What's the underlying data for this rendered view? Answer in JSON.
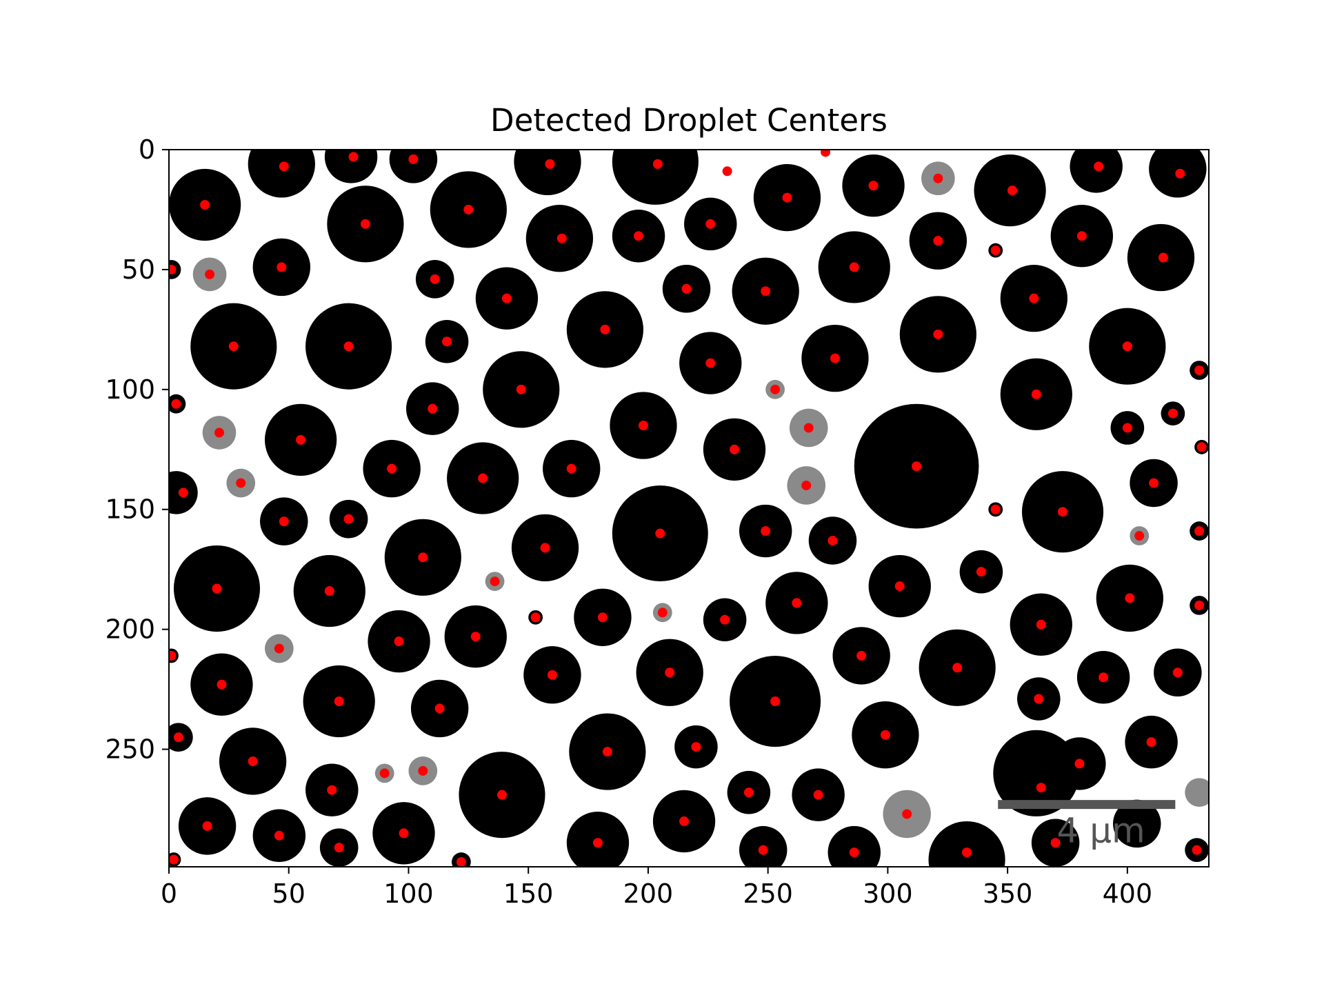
{
  "chart_data": {
    "type": "scatter",
    "title": "Detected Droplet Centers",
    "xlabel": "",
    "ylabel": "",
    "xlim": [
      0,
      434
    ],
    "ylim": [
      299,
      0
    ],
    "x_ticks": [
      0,
      50,
      100,
      150,
      200,
      250,
      300,
      350,
      400
    ],
    "y_ticks": [
      0,
      50,
      100,
      150,
      200,
      250
    ],
    "grid": false,
    "background": "grayscale micrograph of dark droplets on white",
    "scale_bar": {
      "label": "4 µm",
      "x_start": 346,
      "x_end": 420,
      "y": 273,
      "color": "#555555"
    },
    "colors": {
      "marker": "#ff0000",
      "droplet": "#000000",
      "faint_droplet": "#8a8a8a",
      "axes": "#000000"
    },
    "series": [
      {
        "name": "Detected centers",
        "color": "#ff0000",
        "points": [
          [
            48,
            7
          ],
          [
            77,
            3
          ],
          [
            102,
            4
          ],
          [
            159,
            6
          ],
          [
            204,
            6
          ],
          [
            233,
            9
          ],
          [
            274,
            1
          ],
          [
            15,
            23
          ],
          [
            125,
            25
          ],
          [
            258,
            20
          ],
          [
            294,
            15
          ],
          [
            321,
            12
          ],
          [
            352,
            17
          ],
          [
            388,
            7
          ],
          [
            422,
            10
          ],
          [
            82,
            31
          ],
          [
            164,
            37
          ],
          [
            196,
            36
          ],
          [
            226,
            31
          ],
          [
            321,
            38
          ],
          [
            345,
            42
          ],
          [
            381,
            36
          ],
          [
            415,
            45
          ],
          [
            1,
            50
          ],
          [
            17,
            52
          ],
          [
            47,
            49
          ],
          [
            111,
            54
          ],
          [
            141,
            62
          ],
          [
            216,
            58
          ],
          [
            249,
            59
          ],
          [
            286,
            49
          ],
          [
            361,
            62
          ],
          [
            27,
            82
          ],
          [
            75,
            82
          ],
          [
            116,
            80
          ],
          [
            182,
            75
          ],
          [
            226,
            89
          ],
          [
            278,
            87
          ],
          [
            321,
            77
          ],
          [
            400,
            82
          ],
          [
            430,
            92
          ],
          [
            3,
            106
          ],
          [
            147,
            100
          ],
          [
            110,
            108
          ],
          [
            253,
            100
          ],
          [
            362,
            102
          ],
          [
            21,
            118
          ],
          [
            55,
            121
          ],
          [
            198,
            115
          ],
          [
            267,
            116
          ],
          [
            236,
            125
          ],
          [
            400,
            116
          ],
          [
            419,
            110
          ],
          [
            431,
            124
          ],
          [
            6,
            143
          ],
          [
            30,
            139
          ],
          [
            93,
            133
          ],
          [
            131,
            137
          ],
          [
            168,
            133
          ],
          [
            312,
            132
          ],
          [
            266,
            140
          ],
          [
            411,
            139
          ],
          [
            48,
            155
          ],
          [
            75,
            154
          ],
          [
            157,
            166
          ],
          [
            205,
            160
          ],
          [
            249,
            159
          ],
          [
            277,
            163
          ],
          [
            345,
            150
          ],
          [
            373,
            151
          ],
          [
            405,
            161
          ],
          [
            430,
            159
          ],
          [
            106,
            170
          ],
          [
            136,
            180
          ],
          [
            20,
            183
          ],
          [
            67,
            184
          ],
          [
            262,
            189
          ],
          [
            305,
            182
          ],
          [
            339,
            176
          ],
          [
            153,
            195
          ],
          [
            181,
            195
          ],
          [
            206,
            193
          ],
          [
            232,
            196
          ],
          [
            364,
            198
          ],
          [
            401,
            187
          ],
          [
            430,
            190
          ],
          [
            1,
            211
          ],
          [
            46,
            208
          ],
          [
            96,
            205
          ],
          [
            128,
            203
          ],
          [
            289,
            211
          ],
          [
            22,
            223
          ],
          [
            160,
            219
          ],
          [
            209,
            218
          ],
          [
            329,
            216
          ],
          [
            390,
            220
          ],
          [
            421,
            218
          ],
          [
            71,
            230
          ],
          [
            113,
            233
          ],
          [
            253,
            230
          ],
          [
            363,
            229
          ],
          [
            4,
            245
          ],
          [
            299,
            244
          ],
          [
            35,
            255
          ],
          [
            90,
            260
          ],
          [
            106,
            259
          ],
          [
            183,
            251
          ],
          [
            220,
            249
          ],
          [
            380,
            256
          ],
          [
            410,
            247
          ],
          [
            68,
            267
          ],
          [
            139,
            269
          ],
          [
            242,
            268
          ],
          [
            271,
            269
          ],
          [
            364,
            266
          ],
          [
            16,
            282
          ],
          [
            46,
            286
          ],
          [
            98,
            285
          ],
          [
            215,
            280
          ],
          [
            308,
            277
          ],
          [
            71,
            291
          ],
          [
            179,
            289
          ],
          [
            248,
            292
          ],
          [
            286,
            293
          ],
          [
            333,
            293
          ],
          [
            370,
            289
          ],
          [
            2,
            296
          ],
          [
            122,
            297
          ],
          [
            429,
            292
          ]
        ]
      }
    ],
    "droplets": [
      [
        47,
        6,
        14,
        "d"
      ],
      [
        76,
        3,
        11,
        "d"
      ],
      [
        102,
        4,
        10,
        "d"
      ],
      [
        158,
        5,
        14,
        "d"
      ],
      [
        203,
        5,
        18,
        "d"
      ],
      [
        15,
        23,
        15,
        "d"
      ],
      [
        125,
        25,
        16,
        "d"
      ],
      [
        82,
        31,
        16,
        "d"
      ],
      [
        163,
        37,
        14,
        "d"
      ],
      [
        196,
        36,
        11,
        "d"
      ],
      [
        226,
        31,
        11,
        "d"
      ],
      [
        258,
        20,
        14,
        "d"
      ],
      [
        294,
        15,
        13,
        "d"
      ],
      [
        321,
        12,
        7,
        "f"
      ],
      [
        351,
        17,
        15,
        "d"
      ],
      [
        387,
        7,
        11,
        "d"
      ],
      [
        421,
        8,
        12,
        "d"
      ],
      [
        321,
        38,
        12,
        "d"
      ],
      [
        345,
        42,
        3,
        "d"
      ],
      [
        381,
        36,
        13,
        "d"
      ],
      [
        414,
        45,
        14,
        "d"
      ],
      [
        1,
        50,
        4,
        "d"
      ],
      [
        17,
        52,
        7,
        "f"
      ],
      [
        47,
        49,
        12,
        "d"
      ],
      [
        111,
        54,
        8,
        "d"
      ],
      [
        141,
        62,
        13,
        "d"
      ],
      [
        216,
        58,
        10,
        "d"
      ],
      [
        249,
        59,
        14,
        "d"
      ],
      [
        286,
        49,
        15,
        "d"
      ],
      [
        361,
        62,
        14,
        "d"
      ],
      [
        27,
        82,
        18,
        "d"
      ],
      [
        75,
        82,
        18,
        "d"
      ],
      [
        116,
        80,
        9,
        "d"
      ],
      [
        182,
        75,
        16,
        "d"
      ],
      [
        226,
        89,
        13,
        "d"
      ],
      [
        278,
        87,
        14,
        "d"
      ],
      [
        321,
        77,
        16,
        "d"
      ],
      [
        400,
        82,
        16,
        "d"
      ],
      [
        430,
        92,
        4,
        "d"
      ],
      [
        3,
        106,
        4,
        "d"
      ],
      [
        147,
        100,
        16,
        "d"
      ],
      [
        110,
        108,
        11,
        "d"
      ],
      [
        253,
        100,
        4,
        "f"
      ],
      [
        362,
        102,
        15,
        "d"
      ],
      [
        21,
        118,
        7,
        "f"
      ],
      [
        55,
        121,
        15,
        "d"
      ],
      [
        198,
        115,
        14,
        "d"
      ],
      [
        267,
        116,
        8,
        "f"
      ],
      [
        236,
        125,
        13,
        "d"
      ],
      [
        400,
        116,
        7,
        "d"
      ],
      [
        419,
        110,
        5,
        "d"
      ],
      [
        431,
        124,
        3,
        "d"
      ],
      [
        3,
        143,
        9,
        "d"
      ],
      [
        30,
        139,
        6,
        "f"
      ],
      [
        93,
        133,
        12,
        "d"
      ],
      [
        131,
        137,
        15,
        "d"
      ],
      [
        168,
        133,
        12,
        "d"
      ],
      [
        312,
        132,
        26,
        "d"
      ],
      [
        266,
        140,
        8,
        "f"
      ],
      [
        411,
        139,
        10,
        "d"
      ],
      [
        48,
        155,
        10,
        "d"
      ],
      [
        75,
        154,
        8,
        "d"
      ],
      [
        157,
        166,
        14,
        "d"
      ],
      [
        205,
        160,
        20,
        "d"
      ],
      [
        249,
        159,
        11,
        "d"
      ],
      [
        277,
        163,
        10,
        "d"
      ],
      [
        345,
        150,
        3,
        "d"
      ],
      [
        373,
        151,
        17,
        "d"
      ],
      [
        405,
        161,
        4,
        "f"
      ],
      [
        430,
        159,
        4,
        "d"
      ],
      [
        106,
        170,
        16,
        "d"
      ],
      [
        136,
        180,
        4,
        "f"
      ],
      [
        20,
        183,
        18,
        "d"
      ],
      [
        67,
        184,
        15,
        "d"
      ],
      [
        262,
        189,
        13,
        "d"
      ],
      [
        305,
        182,
        13,
        "d"
      ],
      [
        339,
        176,
        9,
        "d"
      ],
      [
        153,
        195,
        3,
        "d"
      ],
      [
        181,
        195,
        12,
        "d"
      ],
      [
        206,
        193,
        4,
        "f"
      ],
      [
        232,
        196,
        9,
        "d"
      ],
      [
        364,
        198,
        13,
        "d"
      ],
      [
        401,
        187,
        14,
        "d"
      ],
      [
        430,
        190,
        4,
        "d"
      ],
      [
        1,
        211,
        3,
        "d"
      ],
      [
        46,
        208,
        6,
        "f"
      ],
      [
        96,
        205,
        13,
        "d"
      ],
      [
        128,
        203,
        13,
        "d"
      ],
      [
        289,
        211,
        12,
        "d"
      ],
      [
        22,
        223,
        13,
        "d"
      ],
      [
        160,
        219,
        12,
        "d"
      ],
      [
        209,
        218,
        14,
        "d"
      ],
      [
        329,
        216,
        16,
        "d"
      ],
      [
        390,
        220,
        11,
        "d"
      ],
      [
        421,
        218,
        10,
        "d"
      ],
      [
        71,
        230,
        15,
        "d"
      ],
      [
        113,
        233,
        12,
        "d"
      ],
      [
        253,
        230,
        19,
        "d"
      ],
      [
        363,
        229,
        9,
        "d"
      ],
      [
        4,
        245,
        6,
        "d"
      ],
      [
        299,
        244,
        14,
        "d"
      ],
      [
        35,
        255,
        14,
        "d"
      ],
      [
        90,
        260,
        4,
        "f"
      ],
      [
        106,
        259,
        6,
        "f"
      ],
      [
        183,
        251,
        16,
        "d"
      ],
      [
        220,
        249,
        9,
        "d"
      ],
      [
        380,
        256,
        11,
        "d"
      ],
      [
        410,
        247,
        11,
        "d"
      ],
      [
        68,
        267,
        11,
        "d"
      ],
      [
        139,
        269,
        18,
        "d"
      ],
      [
        242,
        268,
        9,
        "d"
      ],
      [
        271,
        269,
        11,
        "d"
      ],
      [
        362,
        260,
        18,
        "d"
      ],
      [
        16,
        282,
        12,
        "d"
      ],
      [
        46,
        286,
        11,
        "d"
      ],
      [
        98,
        285,
        13,
        "d"
      ],
      [
        215,
        280,
        13,
        "d"
      ],
      [
        308,
        277,
        10,
        "f"
      ],
      [
        71,
        291,
        8,
        "d"
      ],
      [
        179,
        289,
        13,
        "d"
      ],
      [
        248,
        292,
        10,
        "d"
      ],
      [
        286,
        293,
        11,
        "d"
      ],
      [
        333,
        296,
        16,
        "d"
      ],
      [
        370,
        289,
        10,
        "d"
      ],
      [
        2,
        296,
        3,
        "d"
      ],
      [
        122,
        297,
        4,
        "d"
      ],
      [
        429,
        292,
        5,
        "d"
      ],
      [
        404,
        281,
        10,
        "d"
      ],
      [
        430,
        268,
        6,
        "f"
      ]
    ]
  }
}
